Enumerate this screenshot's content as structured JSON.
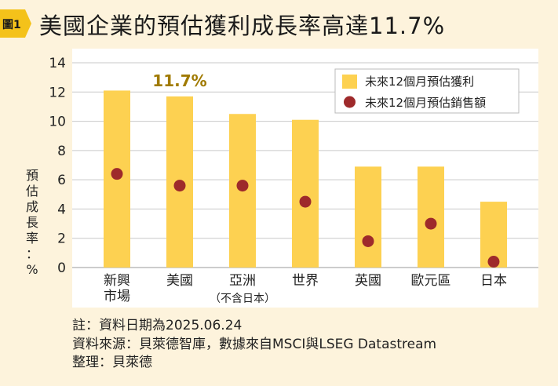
{
  "figure_tag": "圖1",
  "title": "美國企業的預估獲利成長率高達11.7%",
  "notes": {
    "note": "註：資料日期為2025.06.24",
    "source": "資料來源：貝萊德智庫，數據來自MSCI與LSEG Datastream",
    "compiler": "整理：貝萊德"
  },
  "colors": {
    "bar": "#fdd151",
    "dot": "#9e2a2b",
    "highlight": "#a07a00"
  },
  "chart_data": {
    "type": "bar",
    "title": "美國企業的預估獲利成長率高達11.7%",
    "ylabel": "預估成長率：%",
    "ylim": [
      0,
      14
    ],
    "yticks": [
      0,
      2,
      4,
      6,
      8,
      10,
      12,
      14
    ],
    "grid": true,
    "legend_position": "top-right",
    "categories": [
      {
        "label": [
          "新興",
          "市場"
        ],
        "sub": ""
      },
      {
        "label": [
          "美國"
        ],
        "sub": ""
      },
      {
        "label": [
          "亞洲"
        ],
        "sub": "（不含日本）"
      },
      {
        "label": [
          "世界"
        ],
        "sub": ""
      },
      {
        "label": [
          "英國"
        ],
        "sub": ""
      },
      {
        "label": [
          "歐元區"
        ],
        "sub": ""
      },
      {
        "label": [
          "日本"
        ],
        "sub": ""
      }
    ],
    "series": [
      {
        "name": "未來12個月預估獲利",
        "kind": "bar",
        "values": [
          12.1,
          11.7,
          10.5,
          10.1,
          6.9,
          6.9,
          4.5
        ]
      },
      {
        "name": "未來12個月預估銷售額",
        "kind": "dot",
        "values": [
          6.4,
          5.6,
          5.6,
          4.5,
          1.8,
          3.0,
          0.4
        ]
      }
    ],
    "annotation": {
      "category_index": 1,
      "text": "11.7%"
    }
  }
}
